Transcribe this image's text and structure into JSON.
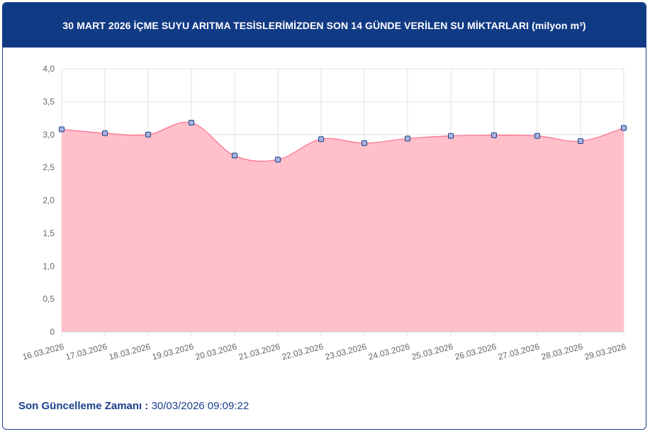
{
  "chart_data": {
    "type": "area",
    "title": "30 MART 2026 İÇME SUYU ARITMA TESİSLERİMİZDEN SON 14 GÜNDE VERİLEN SU MİKTARLARI (milyon m³)",
    "categories": [
      "16.03.2026",
      "17.03.2026",
      "18.03.2026",
      "19.03.2026",
      "20.03.2026",
      "21.03.2026",
      "22.03.2026",
      "23.03.2026",
      "24.03.2026",
      "25.03.2026",
      "26.03.2026",
      "27.03.2026",
      "28.03.2026",
      "29.03.2026"
    ],
    "values": [
      3.08,
      3.02,
      3.0,
      3.18,
      2.68,
      2.62,
      2.93,
      2.87,
      2.94,
      2.98,
      2.99,
      2.98,
      2.9,
      3.1
    ],
    "ylim": [
      0,
      4
    ],
    "yticks": [
      "0",
      "0,5",
      "1,0",
      "1,5",
      "2,0",
      "2,5",
      "3,0",
      "3,5",
      "4,0"
    ],
    "grid": true,
    "colors": {
      "fill": "#ffc0cb",
      "line": "#ff6b8a",
      "point_fill": "#aab4dd",
      "point_stroke": "#1c3f8c",
      "grid": "#e2e2e2"
    }
  },
  "footer": {
    "label": "Son Güncelleme Zamanı :",
    "value": "30/03/2026 09:09:22"
  }
}
